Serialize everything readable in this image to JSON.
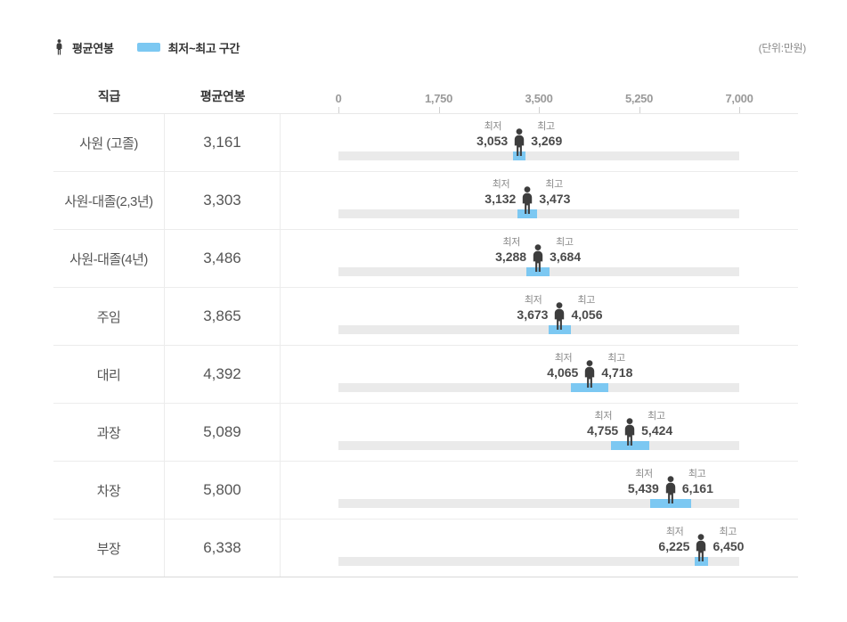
{
  "legend": {
    "avg_label": "평균연봉",
    "range_label": "최저~최고 구간",
    "unit": "(단위:만원)"
  },
  "table_headers": {
    "position": "직급",
    "avg": "평균연봉"
  },
  "labels": {
    "min": "최저",
    "max": "최고"
  },
  "rows": [
    {
      "position": "사원 (고졸)",
      "avg": "3,161",
      "min": "3,053",
      "max": "3,269"
    },
    {
      "position": "사원-대졸(2,3년)",
      "avg": "3,303",
      "min": "3,132",
      "max": "3,473"
    },
    {
      "position": "사원-대졸(4년)",
      "avg": "3,486",
      "min": "3,288",
      "max": "3,684"
    },
    {
      "position": "주임",
      "avg": "3,865",
      "min": "3,673",
      "max": "4,056"
    },
    {
      "position": "대리",
      "avg": "4,392",
      "min": "4,065",
      "max": "4,718"
    },
    {
      "position": "과장",
      "avg": "5,089",
      "min": "4,755",
      "max": "5,424"
    },
    {
      "position": "차장",
      "avg": "5,800",
      "min": "5,439",
      "max": "6,161"
    },
    {
      "position": "부장",
      "avg": "6,338",
      "min": "6,225",
      "max": "6,450"
    }
  ],
  "chart_data": {
    "type": "bar",
    "subtype": "range-dumbbell",
    "orientation": "horizontal",
    "title": "직급별 평균연봉 및 최저~최고 구간",
    "unit": "만원",
    "categories": [
      "사원 (고졸)",
      "사원-대졸(2,3년)",
      "사원-대졸(4년)",
      "주임",
      "대리",
      "과장",
      "차장",
      "부장"
    ],
    "series": [
      {
        "name": "평균연봉",
        "values": [
          3161,
          3303,
          3486,
          3865,
          4392,
          5089,
          5800,
          6338
        ]
      },
      {
        "name": "최저",
        "values": [
          3053,
          3132,
          3288,
          3673,
          4065,
          4755,
          5439,
          6225
        ]
      },
      {
        "name": "최고",
        "values": [
          3269,
          3473,
          3684,
          4056,
          4718,
          5424,
          6161,
          6450
        ]
      }
    ],
    "axis": {
      "min": 0,
      "max": 7000,
      "ticks": [
        0,
        1750,
        3500,
        5250,
        7000
      ],
      "tick_labels": [
        "0",
        "1,750",
        "3,500",
        "5,250",
        "7,000"
      ],
      "grid": false
    },
    "legend_position": "top-left",
    "colors": {
      "range_bar": "#7cc8f2",
      "track": "#eaeaea",
      "person_icon": "#3d3d3d"
    }
  }
}
